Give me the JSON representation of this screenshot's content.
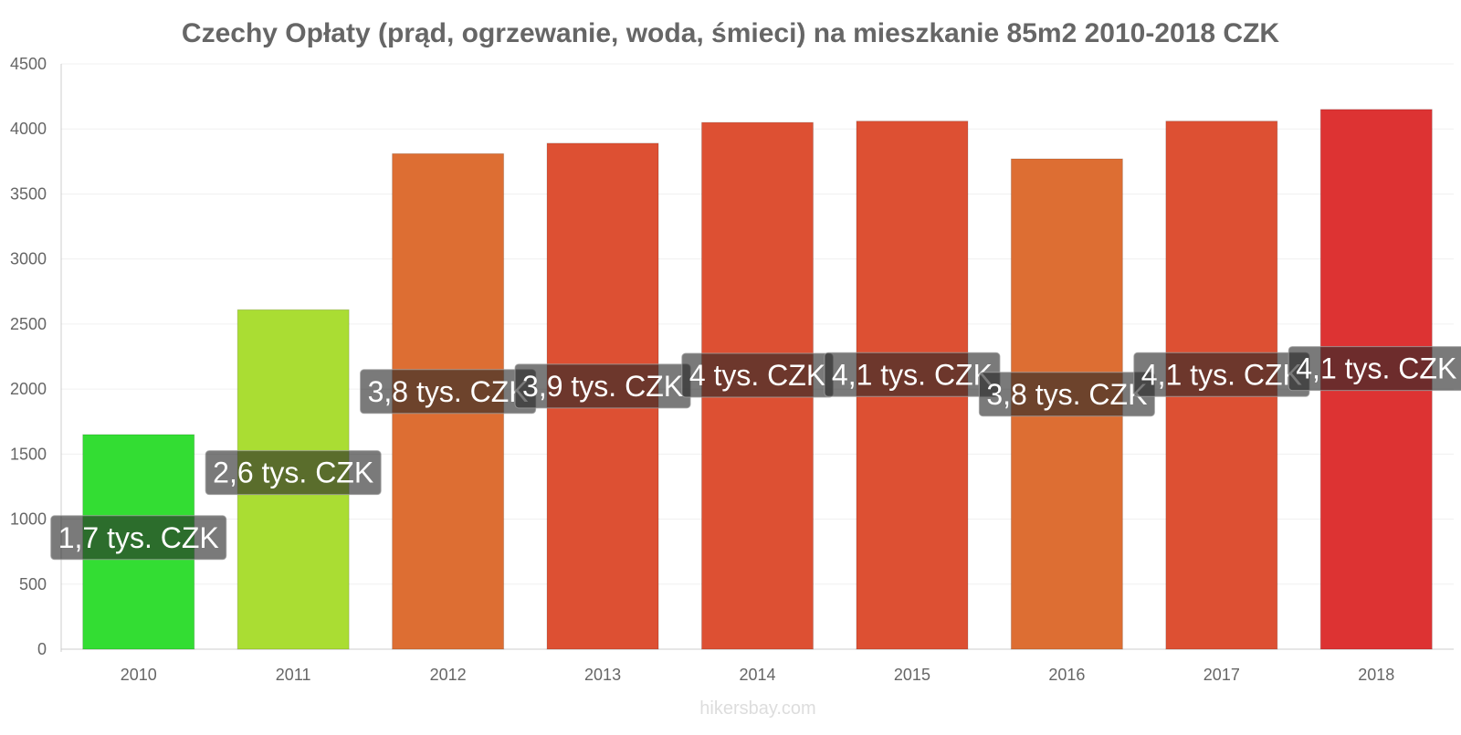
{
  "chart_data": {
    "type": "bar",
    "title": "Czechy Opłaty (prąd, ogrzewanie, woda, śmieci) na mieszkanie 85m2 2010-2018 CZK",
    "categories": [
      "2010",
      "2011",
      "2012",
      "2013",
      "2014",
      "2015",
      "2016",
      "2017",
      "2018"
    ],
    "values": [
      1650,
      2610,
      3810,
      3890,
      4050,
      4060,
      3770,
      4060,
      4150
    ],
    "value_labels": [
      "1,7 tys. CZK",
      "2,6 tys. CZK",
      "3,8 tys. CZK",
      "3,9 tys. CZK",
      "4 tys. CZK",
      "4,1 tys. CZK",
      "3,8 tys. CZK",
      "4,1 tys. CZK",
      "4,1 tys. CZK"
    ],
    "bar_colors": [
      "#33dd33",
      "#aadd33",
      "#dd6e33",
      "#dd5033",
      "#dd5033",
      "#dd5033",
      "#dd6e33",
      "#dd5033",
      "#dd3333"
    ],
    "ylim": [
      0,
      4500
    ],
    "yticks": [
      0,
      500,
      1000,
      1500,
      2000,
      2500,
      3000,
      3500,
      4000,
      4500
    ],
    "xlabel": "",
    "ylabel": "",
    "grid": true,
    "legend": "none"
  },
  "watermark": "hikersbay.com"
}
